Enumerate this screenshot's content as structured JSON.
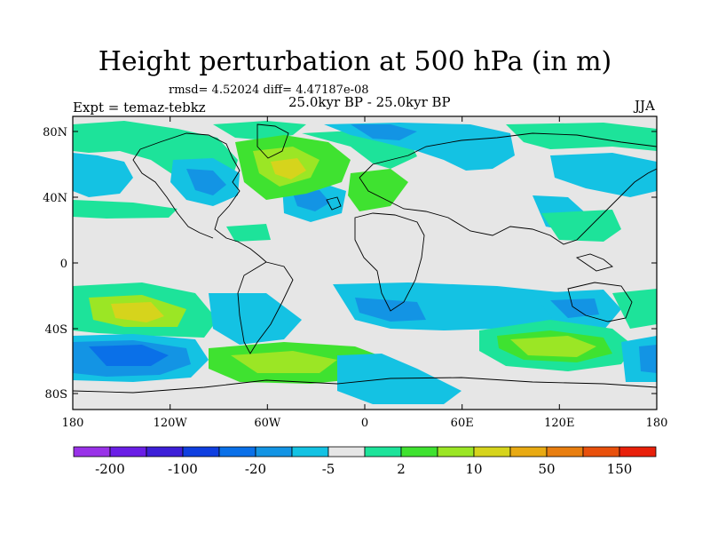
{
  "title": "Height perturbation at 500 hPa (in m)",
  "stats": "rmsd= 4.52024 diff= 4.47187e-08",
  "period": "25.0kyr BP - 25.0kyr BP",
  "experiment": "Expt = temaz-tebkz",
  "season": "JJA",
  "map": {
    "lat_ticks": [
      "80N",
      "40N",
      "0",
      "40S",
      "80S"
    ],
    "lon_ticks": [
      "180",
      "120W",
      "60W",
      "0",
      "60E",
      "120E",
      "180"
    ],
    "ocean_color": "#e6e6e6"
  },
  "colorbar": {
    "colors": [
      "#9932e8",
      "#6a1ee6",
      "#3d1fd8",
      "#0f3fe0",
      "#0a70e8",
      "#1394e4",
      "#14c2e3",
      "#e6e6e6",
      "#1de39a",
      "#3fe230",
      "#9be625",
      "#d6d41c",
      "#e8aa13",
      "#e87e10",
      "#e8500c",
      "#e8200a"
    ],
    "labels": [
      "-200",
      "-100",
      "-20",
      "-5",
      "2",
      "10",
      "50",
      "150"
    ]
  }
}
